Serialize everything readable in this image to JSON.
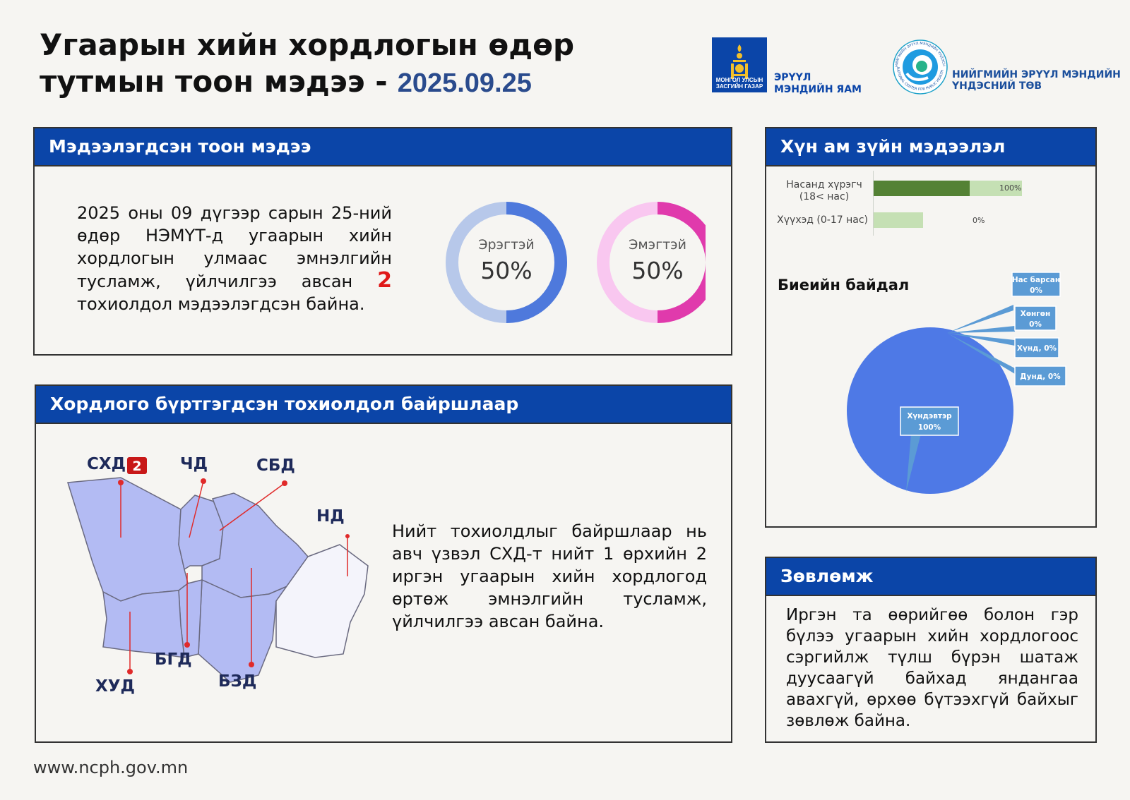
{
  "header": {
    "title_line1": "Угаарын хийн хордлогын өдөр",
    "title_line2": "тутмын тоон мэдээ -",
    "date": "2025.09.25"
  },
  "logos": {
    "gov_small": "МОНГОЛ УЛСЫН ЗАСГИЙН ГАЗАР",
    "ministry_line1": "ЭРҮҮЛ",
    "ministry_line2": "МЭНДИЙН ЯАМ",
    "ncph_line1": "НИЙГМИЙН ЭРҮҮЛ МЭНДИЙН",
    "ncph_line2": "ҮНДЭСНИЙ ТӨВ",
    "ncph_ring_top": "НИЙГМИЙН ЭРҮҮЛ МЭНДИЙН ҮНДЭСНИЙ ТӨВ",
    "ncph_ring_bottom": "NATIONAL CENTER FOR PUBLIC HEALTH"
  },
  "reported": {
    "heading": "Мэдээлэгдсэн тоон мэдээ",
    "text_before": "2025 оны 09 дүгээр сарын 25-ний өдөр НЭМҮТ-д угаарын хийн хордлогын улмаас эмнэлгийн тусламж, үйлчилгээ авсан",
    "count": "2",
    "text_after": "тохиолдол мэдээлэгдсэн байна.",
    "male": {
      "label": "Эрэгтэй",
      "value": "50%",
      "fraction": 0.5,
      "color": "#4e79dc",
      "track": "#b7c8ea"
    },
    "female": {
      "label": "Эмэгтэй",
      "value": "50%",
      "fraction": 0.5,
      "color": "#e03aac",
      "track": "#f9c7f0"
    }
  },
  "demographics": {
    "heading": "Хүн ам зүйн мэдээлэл",
    "bars": [
      {
        "label_line1": "Насанд хүрэгч",
        "label_line2": "(18< нас)",
        "value_label": "100%",
        "fraction": 1.0
      },
      {
        "label_line1": "Хүүхэд (0-17 нас)",
        "label_line2": "",
        "value_label": "0%",
        "fraction": 0.0
      }
    ],
    "condition_title": "Биеийн байдал",
    "chart_data": {
      "type": "pie",
      "title": "Биеийн байдал",
      "slices": [
        {
          "label": "Нас барсан",
          "value": 0,
          "display": "0%"
        },
        {
          "label": "Хөнгөн",
          "value": 0,
          "display": "0%"
        },
        {
          "label": "Хүнд",
          "value": 0,
          "display": "0%"
        },
        {
          "label": "Дунд",
          "value": 0,
          "display": "0%"
        },
        {
          "label": "Хүндэвтэр",
          "value": 100,
          "display": "100%"
        }
      ],
      "callouts": {
        "nas_barsan_1": "Нас барсан",
        "nas_barsan_2": "0%",
        "hongon_1": "Хөнгөн",
        "hongon_2": "0%",
        "hund": "Хүнд, 0%",
        "dund": "Дунд, 0%",
        "hundevter_1": "Хүндэвтэр",
        "hundevter_2": "100%"
      },
      "color": "#4e79e6"
    }
  },
  "location": {
    "heading": "Хордлого бүртгэгдсэн тохиолдол байршлаар",
    "districts": {
      "shd": "СХД",
      "shd_count": "2",
      "chd": "ЧД",
      "sbd": "СБД",
      "nd": "НД",
      "bgd": "БГД",
      "hud": "ХУД",
      "bzd": "БЗД"
    },
    "text": "Нийт тохиолдлыг байршлаар нь авч үзвэл СХД-т нийт 1 өрхийн 2 иргэн угаарын хийн хордлогод өртөж эмнэлгийн тусламж, үйлчилгээ авсан байна."
  },
  "advice": {
    "heading": "Зөвлөмж",
    "text": "Иргэн та өөрийгөө болон гэр бүлээ угаарын хийн хордлогоос сэргийлж түлш бүрэн шатаж дуусаагүй байхад яндангаа авахгүй, өрхөө бүтээхгүй байхыг зөвлөж байна."
  },
  "footer": {
    "url": "www.ncph.gov.mn"
  }
}
